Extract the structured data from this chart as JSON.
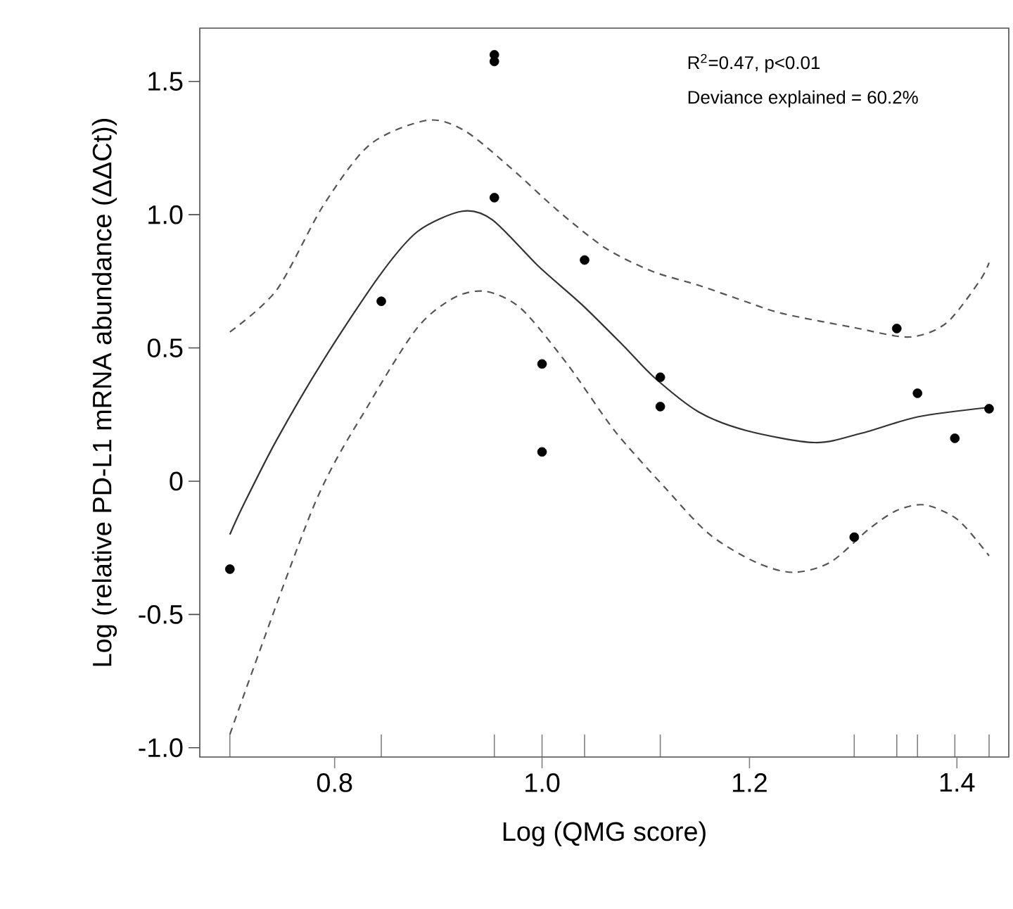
{
  "chart_data": {
    "type": "scatter",
    "xlabel": "Log (QMG score)",
    "ylabel": "Log (relative PD-L1 mRNA abundance (ΔΔCt))",
    "annotations": [
      "R$^{2}$=0.47, p<0.01",
      "Deviance explained = 60.2%"
    ],
    "xlim": [
      0.67,
      1.45
    ],
    "ylim": [
      -1.035,
      1.7
    ],
    "xticks": [
      {
        "value": 0.8,
        "label": "0.8"
      },
      {
        "value": 1.0,
        "label": "1.0"
      },
      {
        "value": 1.2,
        "label": "1.2"
      },
      {
        "value": 1.4,
        "label": "1.4"
      }
    ],
    "yticks": [
      {
        "value": -1.0,
        "label": "-1.0"
      },
      {
        "value": -0.5,
        "label": "-0.5"
      },
      0,
      {
        "value": 0.5,
        "label": "0.5"
      },
      {
        "value": 1.0,
        "label": "1.0"
      },
      {
        "value": 1.5,
        "label": "1.5"
      }
    ],
    "grid": false,
    "series": [
      {
        "type": "line",
        "line_style": "dashed",
        "marker": "none",
        "color": "#555555",
        "x": [
          0.699,
          0.744,
          0.789,
          0.834,
          0.889,
          0.925,
          0.97,
          1.015,
          1.061,
          1.106,
          1.151,
          1.197,
          1.232,
          1.3,
          1.354,
          1.39,
          1.422,
          1.431
        ],
        "values": [
          0.56,
          0.717,
          1.034,
          1.263,
          1.354,
          1.316,
          1.175,
          1.016,
          0.875,
          0.788,
          0.735,
          0.673,
          0.629,
          0.577,
          0.541,
          0.594,
          0.752,
          0.82
        ]
      },
      {
        "type": "line",
        "line_style": "solid",
        "marker": "none",
        "color": "#333333",
        "x": [
          0.699,
          0.712,
          0.744,
          0.789,
          0.843,
          0.88,
          0.923,
          0.952,
          0.997,
          1.038,
          1.079,
          1.108,
          1.151,
          1.197,
          1.263,
          1.308,
          1.363,
          1.431
        ],
        "values": [
          -0.2,
          -0.09,
          0.154,
          0.453,
          0.77,
          0.937,
          1.013,
          0.981,
          0.805,
          0.664,
          0.506,
          0.39,
          0.26,
          0.19,
          0.145,
          0.18,
          0.242,
          0.277
        ]
      },
      {
        "type": "line",
        "line_style": "dashed",
        "marker": "none",
        "color": "#555555",
        "x": [
          0.699,
          0.78,
          0.834,
          0.88,
          0.916,
          0.946,
          0.98,
          1.025,
          1.07,
          1.118,
          1.161,
          1.206,
          1.242,
          1.278,
          1.315,
          1.342,
          1.369,
          1.401,
          1.431
        ],
        "values": [
          -0.95,
          -0.092,
          0.295,
          0.577,
          0.69,
          0.712,
          0.647,
          0.436,
          0.189,
          -0.022,
          -0.198,
          -0.304,
          -0.342,
          -0.304,
          -0.18,
          -0.11,
          -0.089,
          -0.145,
          -0.28
        ]
      },
      {
        "type": "scatter",
        "marker": "circle",
        "color": "#000000",
        "x": [
          0.699,
          0.845,
          0.954,
          0.954,
          0.954,
          1.0,
          1.0,
          1.041,
          1.114,
          1.114,
          1.301,
          1.342,
          1.362,
          1.398,
          1.431
        ],
        "values": [
          -0.33,
          0.675,
          1.6,
          1.575,
          1.064,
          0.44,
          0.11,
          0.83,
          0.39,
          0.28,
          -0.21,
          0.573,
          0.33,
          0.161,
          0.272
        ]
      }
    ]
  }
}
